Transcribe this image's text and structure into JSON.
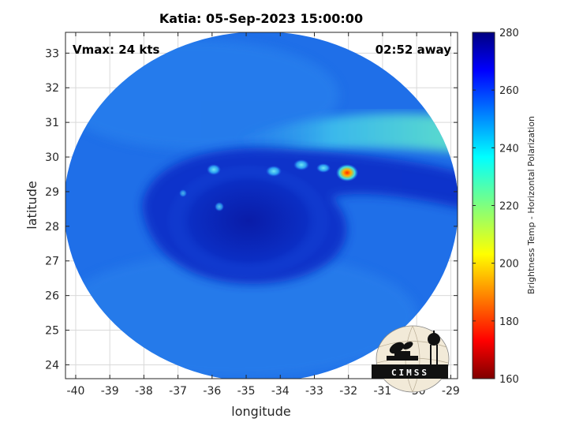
{
  "figure": {
    "title": "Katia: 05-Sep-2023 15:00:00",
    "xlabel": "longitude",
    "ylabel": "latitude",
    "vmax_text": "Vmax: 24 kts",
    "time_away_text": "02:52 away",
    "logo_text": "CIMSS"
  },
  "colorbar": {
    "label": "Brightness Temp - Horizontal Polarization",
    "range": [
      160,
      280
    ],
    "ticks": [
      "160",
      "180",
      "200",
      "220",
      "240",
      "260",
      "280"
    ],
    "colormap": "jet"
  },
  "map": {
    "x_range": [
      -40.3,
      -28.8
    ],
    "y_range": [
      23.6,
      33.6
    ],
    "x_ticks": [
      "-40",
      "-39",
      "-38",
      "-37",
      "-36",
      "-35",
      "-34",
      "-33",
      "-32",
      "-31",
      "-30",
      "-29"
    ],
    "y_ticks": [
      "24",
      "25",
      "26",
      "27",
      "28",
      "29",
      "30",
      "31",
      "32",
      "33"
    ],
    "grid": true,
    "swath_center": [
      -34.6,
      28.6
    ],
    "storm_center": [
      -34.7,
      28.3
    ],
    "hot_spot": [
      -32.0,
      29.5
    ],
    "colors": {
      "background_field": "#1f6fe8",
      "spiral_band": "#0b2fc8",
      "eye_region": "#0a20b0",
      "north_band": "#35c2e6",
      "hot_spot": "#e8501a"
    }
  }
}
